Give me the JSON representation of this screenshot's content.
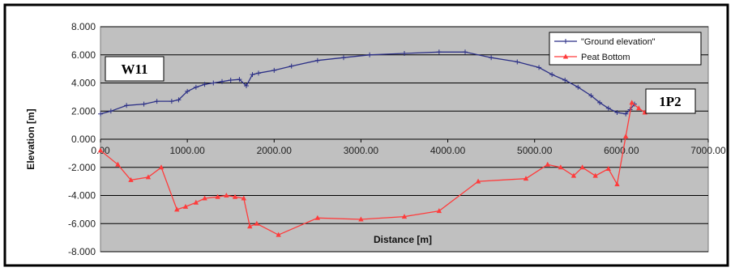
{
  "chart_data": {
    "type": "line",
    "xlabel": "Distance [m]",
    "ylabel": "Elevation [m]",
    "xlim": [
      0,
      7000
    ],
    "ylim": [
      -8,
      8
    ],
    "x_ticks": [
      0,
      1000,
      2000,
      3000,
      4000,
      5000,
      6000,
      7000
    ],
    "x_tick_labels": [
      "0.00",
      "1000.00",
      "2000.00",
      "3000.00",
      "4000.00",
      "5000.00",
      "6000.00",
      "7000.00"
    ],
    "y_ticks": [
      8,
      6,
      4,
      2,
      0,
      -2,
      -4,
      -6,
      -8
    ],
    "y_tick_labels": [
      "8.000",
      "6.000",
      "4.000",
      "2.000",
      "0.000",
      "-2.000",
      "-4.000",
      "-6.000",
      "-8.000"
    ],
    "grid": "horizontal",
    "plot_background": "#c0c0c0",
    "legend": {
      "placement": "top-right",
      "entries": [
        "\"Ground elevation\"",
        "Peat Bottom"
      ]
    },
    "annotations": [
      "W11",
      "1P2"
    ],
    "series": [
      {
        "name": "\"Ground elevation\"",
        "color": "#2b2f86",
        "marker": "plus",
        "x": [
          0,
          120,
          300,
          500,
          650,
          820,
          900,
          1000,
          1100,
          1200,
          1300,
          1400,
          1500,
          1600,
          1680,
          1750,
          1820,
          2000,
          2200,
          2500,
          2800,
          3100,
          3500,
          3900,
          4200,
          4500,
          4800,
          5050,
          5200,
          5350,
          5500,
          5650,
          5750,
          5850,
          5950,
          6050,
          6100,
          6150
        ],
        "y": [
          1.8,
          2.0,
          2.4,
          2.5,
          2.7,
          2.7,
          2.8,
          3.4,
          3.7,
          3.9,
          4.0,
          4.1,
          4.2,
          4.25,
          3.8,
          4.6,
          4.7,
          4.9,
          5.2,
          5.6,
          5.8,
          6.0,
          6.1,
          6.2,
          6.2,
          5.8,
          5.5,
          5.1,
          4.6,
          4.2,
          3.7,
          3.1,
          2.6,
          2.2,
          1.9,
          1.8,
          2.1,
          2.5
        ]
      },
      {
        "name": "Peat Bottom",
        "color": "#ff3b3b",
        "marker": "triangle",
        "x": [
          0,
          200,
          350,
          550,
          700,
          880,
          980,
          1100,
          1200,
          1350,
          1450,
          1550,
          1650,
          1720,
          1800,
          2050,
          2500,
          3000,
          3500,
          3900,
          4350,
          4900,
          5150,
          5300,
          5450,
          5550,
          5700,
          5850,
          5950,
          6050,
          6120,
          6200,
          6270
        ],
        "y": [
          -0.8,
          -1.8,
          -2.9,
          -2.7,
          -2.0,
          -5.0,
          -4.8,
          -4.5,
          -4.2,
          -4.1,
          -4.0,
          -4.1,
          -4.2,
          -6.2,
          -6.0,
          -6.8,
          -5.6,
          -5.7,
          -5.5,
          -5.1,
          -3.0,
          -2.8,
          -1.8,
          -2.0,
          -2.6,
          -2.0,
          -2.6,
          -2.1,
          -3.2,
          0.2,
          2.6,
          2.2,
          1.9
        ]
      }
    ]
  }
}
